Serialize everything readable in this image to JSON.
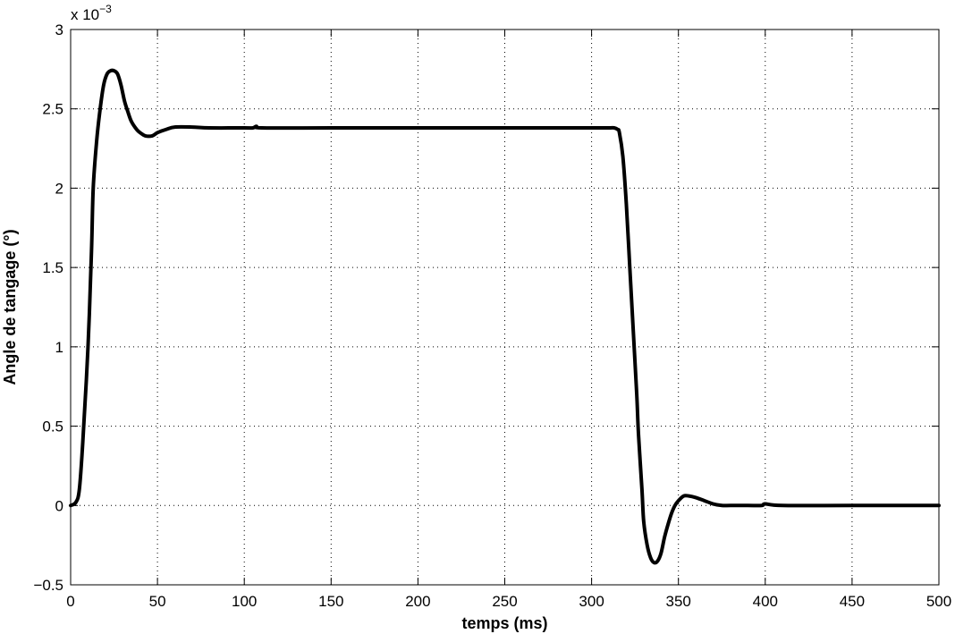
{
  "chart_data": {
    "type": "line",
    "title": "",
    "xlabel": "temps (ms)",
    "ylabel": "Angle de tangage (°)",
    "xlim": [
      0,
      500
    ],
    "ylim": [
      -0.5,
      3
    ],
    "y_scale_label": {
      "base": "x 10",
      "exponent": "−3"
    },
    "grid": true,
    "x_ticks": [
      0,
      50,
      100,
      150,
      200,
      250,
      300,
      350,
      400,
      450,
      500
    ],
    "x_tick_labels": [
      "0",
      "50",
      "100",
      "150",
      "200",
      "250",
      "300",
      "350",
      "400",
      "450",
      "500"
    ],
    "y_ticks": [
      -0.5,
      0,
      0.5,
      1,
      1.5,
      2,
      2.5,
      3
    ],
    "y_tick_labels": [
      "−0.5",
      "0",
      "0.5",
      "1",
      "1.5",
      "2",
      "2.5",
      "3"
    ],
    "series": [
      {
        "name": "Angle de tangage",
        "color": "#000000",
        "x": [
          0,
          3,
          5,
          7,
          10,
          12,
          13,
          15,
          17,
          19,
          21,
          23,
          25,
          27,
          29,
          31,
          33,
          35,
          38,
          40,
          43,
          47,
          50,
          55,
          60,
          70,
          80,
          100,
          105,
          107,
          110,
          150,
          200,
          250,
          300,
          310,
          313,
          315,
          316,
          318,
          320,
          322,
          324,
          326,
          327,
          329,
          330,
          332,
          334,
          336,
          338,
          340,
          342,
          344,
          346,
          348,
          350,
          353,
          356,
          360,
          365,
          370,
          375,
          380,
          390,
          398,
          400,
          410,
          450,
          500
        ],
        "y": [
          0,
          0.02,
          0.1,
          0.4,
          1.0,
          1.6,
          2.0,
          2.3,
          2.5,
          2.65,
          2.72,
          2.74,
          2.74,
          2.72,
          2.65,
          2.55,
          2.48,
          2.42,
          2.37,
          2.35,
          2.33,
          2.33,
          2.35,
          2.37,
          2.385,
          2.385,
          2.38,
          2.38,
          2.38,
          2.39,
          2.38,
          2.38,
          2.38,
          2.38,
          2.38,
          2.38,
          2.38,
          2.37,
          2.35,
          2.2,
          1.9,
          1.5,
          1.1,
          0.7,
          0.45,
          0.1,
          -0.1,
          -0.25,
          -0.33,
          -0.36,
          -0.35,
          -0.3,
          -0.2,
          -0.12,
          -0.05,
          0.0,
          0.03,
          0.06,
          0.06,
          0.05,
          0.03,
          0.01,
          0.0,
          0.0,
          0.0,
          0.0,
          0.01,
          0.0,
          0.0,
          0.0
        ]
      }
    ]
  }
}
